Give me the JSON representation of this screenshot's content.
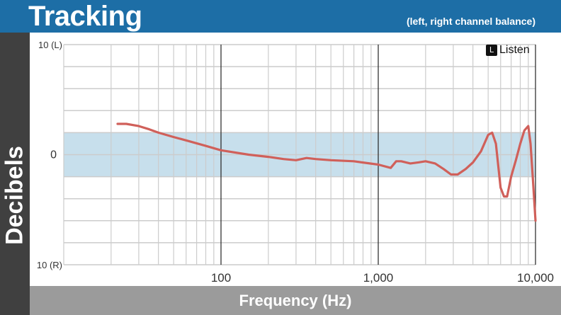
{
  "header": {
    "title": "Tracking",
    "subtitle": "(left, right channel balance)"
  },
  "logo": {
    "text": "Listen",
    "icon": "listen-logo-icon"
  },
  "colors": {
    "header_bg": "#1d6ea6",
    "band": "#c7dfec",
    "line": "#d0605a",
    "side_bg": "#404040",
    "footer_bg": "#9b9b9b"
  },
  "chart_data": {
    "type": "line",
    "title": "Tracking",
    "subtitle": "(left, right channel balance)",
    "xlabel": "Frequency (Hz)",
    "ylabel": "Decibels",
    "x_scale": "log",
    "xlim": [
      20,
      10000
    ],
    "ylim": [
      -10,
      10
    ],
    "x_ticks": [
      {
        "value": 100,
        "label": "100"
      },
      {
        "value": 1000,
        "label": "1,000"
      },
      {
        "value": 10000,
        "label": "10,000"
      }
    ],
    "y_ticks": [
      {
        "value": 10,
        "label": "10 (L)"
      },
      {
        "value": 0,
        "label": "0"
      },
      {
        "value": -10,
        "label": "10 (R)"
      }
    ],
    "band": [
      -2,
      2
    ],
    "grid": true,
    "series": [
      {
        "x": [
          22,
          25,
          30,
          35,
          40,
          50,
          60,
          80,
          100,
          150,
          200,
          250,
          300,
          350,
          400,
          500,
          700,
          1000,
          1200,
          1300,
          1400,
          1600,
          1800,
          2000,
          2300,
          2600,
          2900,
          3200,
          3600,
          4000,
          4500,
          5000,
          5300,
          5600,
          6000,
          6300,
          6600,
          7000,
          7500,
          8000,
          8500,
          9000,
          9300,
          9600,
          10000
        ],
        "y": [
          2.8,
          2.8,
          2.6,
          2.3,
          2.0,
          1.6,
          1.3,
          0.8,
          0.4,
          0.0,
          -0.2,
          -0.4,
          -0.5,
          -0.3,
          -0.4,
          -0.5,
          -0.6,
          -0.9,
          -1.2,
          -0.6,
          -0.6,
          -0.8,
          -0.7,
          -0.6,
          -0.8,
          -1.3,
          -1.8,
          -1.8,
          -1.3,
          -0.7,
          0.3,
          1.8,
          2.0,
          1.0,
          -3.0,
          -3.8,
          -3.8,
          -2.0,
          -0.5,
          1.0,
          2.2,
          2.6,
          1.0,
          -2.0,
          -6.0
        ]
      }
    ]
  }
}
